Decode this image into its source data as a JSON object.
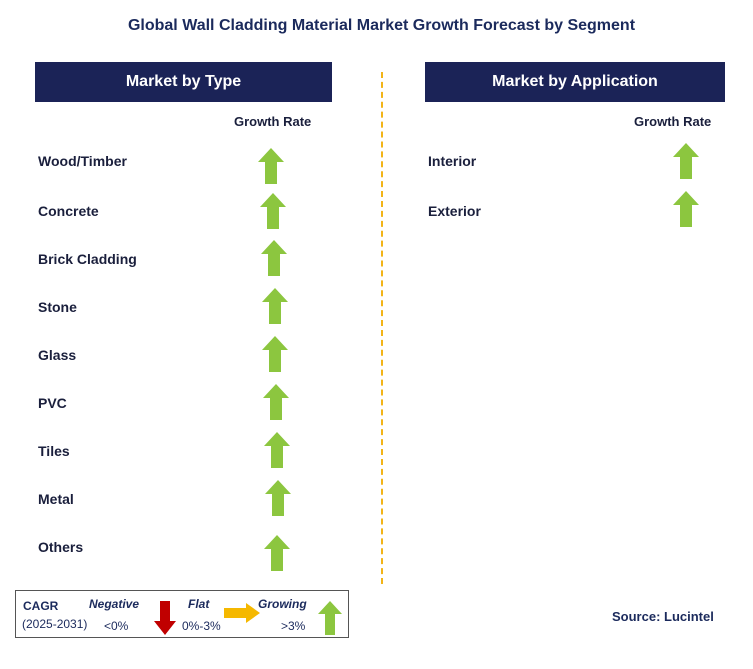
{
  "title": "Global Wall Cladding Material Market Growth Forecast by Segment",
  "left_panel": {
    "header": "Market by Type",
    "column_label": "Growth Rate",
    "rows": [
      {
        "label": "Wood/Timber",
        "trend": "growing"
      },
      {
        "label": "Concrete",
        "trend": "growing"
      },
      {
        "label": "Brick Cladding",
        "trend": "growing"
      },
      {
        "label": "Stone",
        "trend": "growing"
      },
      {
        "label": "Glass",
        "trend": "growing"
      },
      {
        "label": "PVC",
        "trend": "growing"
      },
      {
        "label": "Tiles",
        "trend": "growing"
      },
      {
        "label": "Metal",
        "trend": "growing"
      },
      {
        "label": "Others",
        "trend": "growing"
      }
    ]
  },
  "right_panel": {
    "header": "Market by Application",
    "column_label": "Growth Rate",
    "rows": [
      {
        "label": "Interior",
        "trend": "growing"
      },
      {
        "label": "Exterior",
        "trend": "growing"
      }
    ]
  },
  "legend": {
    "cagr_label": "CAGR",
    "period": "(2025-2031)",
    "negative_label": "Negative",
    "negative_range": "<0%",
    "flat_label": "Flat",
    "flat_range": "0%-3%",
    "growing_label": "Growing",
    "growing_range": ">3%"
  },
  "source": "Source: Lucintel",
  "colors": {
    "header_bg": "#1b2357",
    "growing_arrow": "#8cc63f",
    "negative_arrow": "#c00000",
    "flat_arrow": "#f5b800",
    "divider": "#f2b418"
  }
}
